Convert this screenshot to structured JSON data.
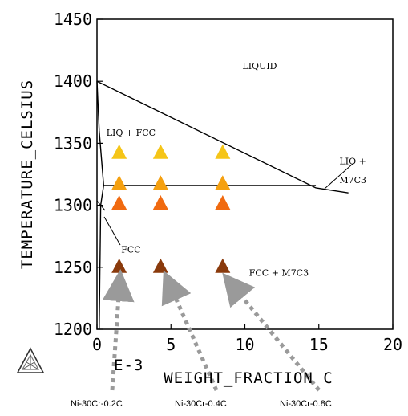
{
  "chart_data": {
    "type": "scatter",
    "xlabel": "WEIGHT_FRACTION C",
    "x_multiplier": "E-3",
    "ylabel": "TEMPERATURE_CELSIUS",
    "xlim": [
      0,
      20
    ],
    "ylim": [
      1200,
      1450
    ],
    "x_ticks": [
      "0",
      "5",
      "10",
      "15",
      "20"
    ],
    "y_ticks": [
      "1200",
      "1250",
      "1300",
      "1350",
      "1400",
      "1450"
    ],
    "grid": false,
    "phase_regions": [
      {
        "label": "LIQUID",
        "x": 11,
        "y": 1410
      },
      {
        "label": "LIQ + FCC",
        "x": 2.3,
        "y": 1356
      },
      {
        "label": "LIQ +",
        "x": 17.3,
        "y": 1333
      },
      {
        "label": "M7C3",
        "x": 17.3,
        "y": 1318
      },
      {
        "label": "FCC",
        "x": 2.3,
        "y": 1262
      },
      {
        "label": "FCC + M7C3",
        "x": 12.3,
        "y": 1243
      }
    ],
    "phase_boundaries": [
      {
        "name": "liquidus",
        "points": [
          [
            0,
            1400
          ],
          [
            14.8,
            1314
          ]
        ]
      },
      {
        "name": "liquidus-m7c3",
        "points": [
          [
            14.8,
            1314
          ],
          [
            17,
            1310
          ]
        ]
      },
      {
        "name": "eutectic",
        "points": [
          [
            0.45,
            1316
          ],
          [
            14.8,
            1316
          ]
        ]
      },
      {
        "name": "solidus",
        "points": [
          [
            0,
            1400
          ],
          [
            0.15,
            1360
          ],
          [
            0.45,
            1316
          ]
        ]
      },
      {
        "name": "solvus",
        "points": [
          [
            0.15,
            1200
          ],
          [
            0.25,
            1300
          ],
          [
            0.45,
            1316
          ]
        ]
      }
    ],
    "series": [
      {
        "values": [
          [
            1.5,
            1343
          ],
          [
            4.3,
            1343
          ],
          [
            8.5,
            1343
          ]
        ],
        "color": "#f5c518"
      },
      {
        "values": [
          [
            1.5,
            1318
          ],
          [
            4.3,
            1318
          ],
          [
            8.5,
            1318
          ]
        ],
        "color": "#f5a010"
      },
      {
        "values": [
          [
            1.5,
            1302
          ],
          [
            4.3,
            1302
          ],
          [
            8.5,
            1302
          ]
        ],
        "color": "#f06a10"
      },
      {
        "values": [
          [
            1.5,
            1251
          ],
          [
            4.3,
            1251
          ],
          [
            8.5,
            1251
          ]
        ],
        "color": "#8a3a0c"
      }
    ],
    "sample_labels": [
      "Ni-30Cr-0.2C",
      "Ni-30Cr-0.4C",
      "Ni-30Cr-0.8C"
    ]
  }
}
